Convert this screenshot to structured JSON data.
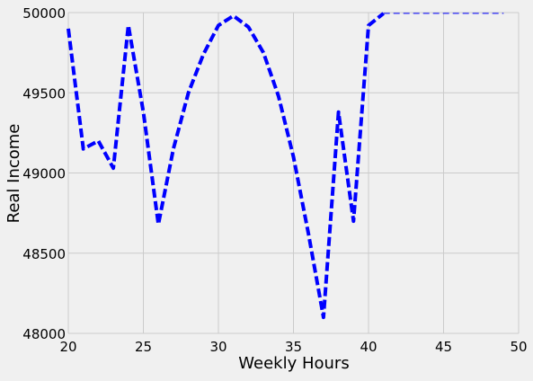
{
  "chart_data": {
    "type": "line",
    "xlabel": "Weekly Hours",
    "ylabel": "Real Income",
    "xlim": [
      20,
      50
    ],
    "ylim": [
      48000,
      50000
    ],
    "xticks": [
      20,
      25,
      30,
      35,
      40,
      45,
      50
    ],
    "yticks": [
      48000,
      48500,
      49000,
      49500,
      50000
    ],
    "xtick_labels": [
      "20",
      "25",
      "30",
      "35",
      "40",
      "45",
      "50"
    ],
    "ytick_labels": [
      "48000",
      "48500",
      "49000",
      "49500",
      "50000"
    ],
    "grid": true,
    "colors": {
      "background": "#f0f0f0",
      "grid": "#cbcbcb",
      "line": "#0000ff"
    },
    "series": [
      {
        "x": [
          20,
          21,
          22,
          23,
          24,
          25,
          26,
          27,
          28,
          29,
          30,
          31,
          32,
          33,
          34,
          35,
          36,
          37,
          38,
          39,
          40,
          41
        ],
        "y": [
          49900,
          49150,
          49200,
          49030,
          49920,
          49380,
          48680,
          49150,
          49500,
          49740,
          49920,
          49980,
          49910,
          49750,
          49480,
          49100,
          48620,
          48100,
          49380,
          48700,
          49920,
          49995
        ],
        "style": "dashed",
        "width": "thick"
      },
      {
        "x": [
          41,
          49
        ],
        "y": [
          49995,
          49995
        ],
        "style": "dashed",
        "width": "thin"
      }
    ]
  }
}
